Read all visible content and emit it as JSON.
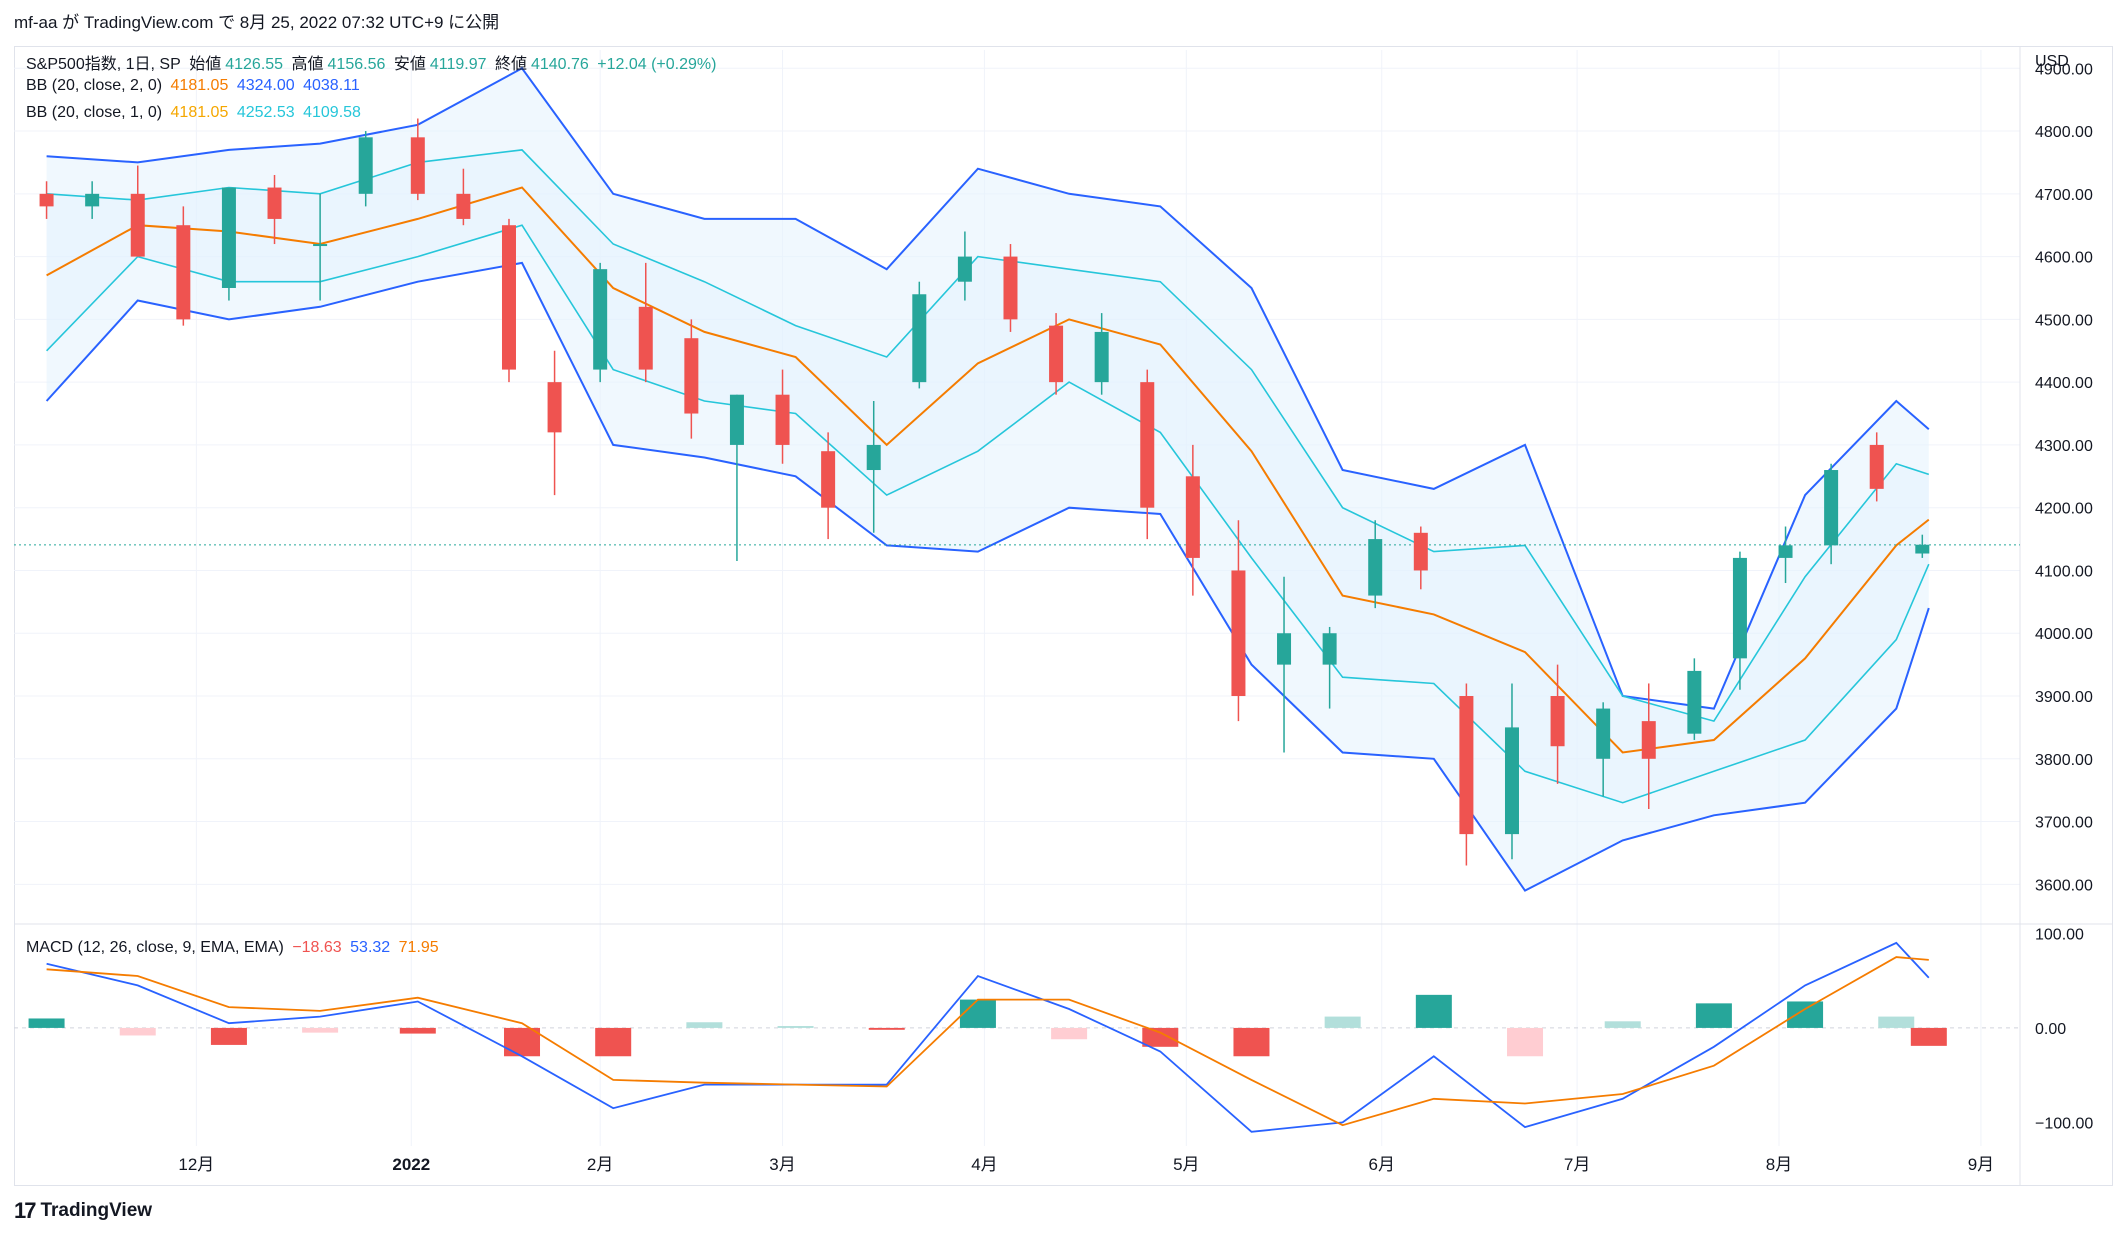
{
  "header": {
    "publish_line": "mf-aa が TradingView.com で 8月 25, 2022 07:32 UTC+9 に公開"
  },
  "legend": {
    "symbol": "S&P500指数, 1日, SP",
    "open_label": "始値",
    "open": "4126.55",
    "high_label": "高値",
    "high": "4156.56",
    "low_label": "安値",
    "low": "4119.97",
    "close_label": "終値",
    "close": "4140.76",
    "change": "+12.04 (+0.29%)",
    "bb2_label": "BB (20, close, 2, 0)",
    "bb2_basis": "4181.05",
    "bb2_upper": "4324.00",
    "bb2_lower": "4038.11",
    "bb1_label": "BB (20, close, 1, 0)",
    "bb1_basis": "4181.05",
    "bb1_upper": "4252.53",
    "bb1_lower": "4109.58",
    "macd_label": "MACD (12, 26, close, 9, EMA, EMA)",
    "macd_hist": "−18.63",
    "macd_line": "53.32",
    "macd_signal": "71.95"
  },
  "footer": {
    "brand": "TradingView",
    "logo_glyph": "17"
  },
  "colors": {
    "up": "#26a69a",
    "down": "#ef5350",
    "basis": "#f57c00",
    "bb2_band": "#2962ff",
    "bb1_band": "#26c6da",
    "fill": "#e3f2fd",
    "hist_up_light": "#b2dfdb",
    "hist_down_light": "#ffcdd2"
  },
  "chart_data": {
    "type": "candlestick",
    "y_unit": "USD",
    "price_axis": {
      "ylim": [
        3540,
        4910
      ],
      "ticks": [
        3600,
        3700,
        3800,
        3900,
        4000,
        4100,
        4200,
        4300,
        4400,
        4500,
        4600,
        4700,
        4800,
        4900
      ],
      "tick_labels": [
        "3600.00",
        "3700.00",
        "3800.00",
        "3900.00",
        "4000.00",
        "4100.00",
        "4200.00",
        "4300.00",
        "4400.00",
        "4500.00",
        "4600.00",
        "4700.00",
        "4800.00",
        "4900.00"
      ]
    },
    "macd_axis": {
      "ylim": [
        -125,
        110
      ],
      "ticks": [
        100,
        0,
        -100
      ],
      "tick_labels": [
        "100.00",
        "0.00",
        "−100.00"
      ]
    },
    "x_axis": {
      "dates": [
        "2021-12-01",
        "2022-01-03",
        "2022-02-01",
        "2022-03-01",
        "2022-04-01",
        "2022-05-02",
        "2022-06-01",
        "2022-07-01",
        "2022-08-01",
        "2022-09-01"
      ],
      "labels": [
        "12月",
        "2022",
        "2月",
        "3月",
        "4月",
        "5月",
        "6月",
        "7月",
        "8月",
        "9月"
      ]
    },
    "last_close": 4140.76,
    "series": [
      {
        "name": "BB (20, close, 2, 0)",
        "kind": "upper",
        "x": [
          "2021-11-08",
          "2021-11-22",
          "2021-12-06",
          "2021-12-20",
          "2022-01-04",
          "2022-01-20",
          "2022-02-03",
          "2022-02-17",
          "2022-03-03",
          "2022-03-17",
          "2022-03-31",
          "2022-04-14",
          "2022-04-28",
          "2022-05-12",
          "2022-05-26",
          "2022-06-09",
          "2022-06-23",
          "2022-07-08",
          "2022-07-22",
          "2022-08-05",
          "2022-08-19",
          "2022-08-24"
        ],
        "values": [
          4760,
          4750,
          4770,
          4780,
          4810,
          4900,
          4700,
          4660,
          4660,
          4580,
          4740,
          4700,
          4680,
          4550,
          4260,
          4230,
          4300,
          3900,
          3880,
          4220,
          4370,
          4325
        ]
      },
      {
        "name": "BB (20, close, 1, 0)",
        "kind": "upper",
        "x": [
          "2021-11-08",
          "2021-11-22",
          "2021-12-06",
          "2021-12-20",
          "2022-01-04",
          "2022-01-20",
          "2022-02-03",
          "2022-02-17",
          "2022-03-03",
          "2022-03-17",
          "2022-03-31",
          "2022-04-14",
          "2022-04-28",
          "2022-05-12",
          "2022-05-26",
          "2022-06-09",
          "2022-06-23",
          "2022-07-08",
          "2022-07-22",
          "2022-08-05",
          "2022-08-19",
          "2022-08-24"
        ],
        "values": [
          4700,
          4690,
          4710,
          4700,
          4750,
          4770,
          4620,
          4560,
          4490,
          4440,
          4600,
          4580,
          4560,
          4420,
          4200,
          4130,
          4140,
          3900,
          3860,
          4090,
          4270,
          4253
        ]
      },
      {
        "name": "BB (20, close, 2, 0)",
        "kind": "basis",
        "x": [
          "2021-11-08",
          "2021-11-22",
          "2021-12-06",
          "2021-12-20",
          "2022-01-04",
          "2022-01-20",
          "2022-02-03",
          "2022-02-17",
          "2022-03-03",
          "2022-03-17",
          "2022-03-31",
          "2022-04-14",
          "2022-04-28",
          "2022-05-12",
          "2022-05-26",
          "2022-06-09",
          "2022-06-23",
          "2022-07-08",
          "2022-07-22",
          "2022-08-05",
          "2022-08-19",
          "2022-08-24"
        ],
        "values": [
          4570,
          4650,
          4640,
          4620,
          4660,
          4710,
          4550,
          4480,
          4440,
          4300,
          4430,
          4500,
          4460,
          4290,
          4060,
          4030,
          3970,
          3810,
          3830,
          3960,
          4140,
          4181
        ]
      },
      {
        "name": "BB (20, close, 1, 0)",
        "kind": "lower",
        "x": [
          "2021-11-08",
          "2021-11-22",
          "2021-12-06",
          "2021-12-20",
          "2022-01-04",
          "2022-01-20",
          "2022-02-03",
          "2022-02-17",
          "2022-03-03",
          "2022-03-17",
          "2022-03-31",
          "2022-04-14",
          "2022-04-28",
          "2022-05-12",
          "2022-05-26",
          "2022-06-09",
          "2022-06-23",
          "2022-07-08",
          "2022-07-22",
          "2022-08-05",
          "2022-08-19",
          "2022-08-24"
        ],
        "values": [
          4450,
          4600,
          4560,
          4560,
          4600,
          4650,
          4420,
          4370,
          4350,
          4220,
          4290,
          4400,
          4320,
          4120,
          3930,
          3920,
          3780,
          3730,
          3780,
          3830,
          3990,
          4110
        ]
      },
      {
        "name": "BB (20, close, 2, 0)",
        "kind": "lower",
        "x": [
          "2021-11-08",
          "2021-11-22",
          "2021-12-06",
          "2021-12-20",
          "2022-01-04",
          "2022-01-20",
          "2022-02-03",
          "2022-02-17",
          "2022-03-03",
          "2022-03-17",
          "2022-03-31",
          "2022-04-14",
          "2022-04-28",
          "2022-05-12",
          "2022-05-26",
          "2022-06-09",
          "2022-06-23",
          "2022-07-08",
          "2022-07-22",
          "2022-08-05",
          "2022-08-19",
          "2022-08-24"
        ],
        "values": [
          4370,
          4530,
          4500,
          4520,
          4560,
          4590,
          4300,
          4280,
          4250,
          4140,
          4130,
          4200,
          4190,
          3950,
          3810,
          3800,
          3590,
          3670,
          3710,
          3730,
          3880,
          4040
        ]
      },
      {
        "name": "MACD",
        "kind": "macd_line",
        "x": [
          "2021-11-08",
          "2021-11-22",
          "2021-12-06",
          "2021-12-20",
          "2022-01-04",
          "2022-01-20",
          "2022-02-03",
          "2022-02-17",
          "2022-03-03",
          "2022-03-17",
          "2022-03-31",
          "2022-04-14",
          "2022-04-28",
          "2022-05-12",
          "2022-05-26",
          "2022-06-09",
          "2022-06-23",
          "2022-07-08",
          "2022-07-22",
          "2022-08-05",
          "2022-08-19",
          "2022-08-24"
        ],
        "values": [
          68,
          45,
          5,
          12,
          28,
          -30,
          -85,
          -60,
          -60,
          -60,
          55,
          20,
          -25,
          -110,
          -100,
          -30,
          -105,
          -75,
          -20,
          45,
          90,
          53
        ]
      },
      {
        "name": "Signal",
        "kind": "macd_signal",
        "x": [
          "2021-11-08",
          "2021-11-22",
          "2021-12-06",
          "2021-12-20",
          "2022-01-04",
          "2022-01-20",
          "2022-02-03",
          "2022-02-17",
          "2022-03-03",
          "2022-03-17",
          "2022-03-31",
          "2022-04-14",
          "2022-04-28",
          "2022-05-12",
          "2022-05-26",
          "2022-06-09",
          "2022-06-23",
          "2022-07-08",
          "2022-07-22",
          "2022-08-05",
          "2022-08-19",
          "2022-08-24"
        ],
        "values": [
          62,
          55,
          22,
          18,
          32,
          5,
          -55,
          -58,
          -60,
          -62,
          30,
          30,
          -5,
          -55,
          -103,
          -75,
          -80,
          -70,
          -40,
          20,
          75,
          72
        ]
      }
    ],
    "macd_histogram": {
      "x": [
        "2021-11-08",
        "2021-11-22",
        "2021-12-06",
        "2021-12-20",
        "2022-01-04",
        "2022-01-20",
        "2022-02-03",
        "2022-02-17",
        "2022-03-03",
        "2022-03-17",
        "2022-03-31",
        "2022-04-14",
        "2022-04-28",
        "2022-05-12",
        "2022-05-26",
        "2022-06-09",
        "2022-06-23",
        "2022-07-08",
        "2022-07-22",
        "2022-08-05",
        "2022-08-19",
        "2022-08-24"
      ],
      "values": [
        10,
        -8,
        -18,
        -5,
        -6,
        -30,
        -30,
        6,
        2,
        -2,
        30,
        -12,
        -20,
        -30,
        12,
        35,
        -30,
        7,
        26,
        28,
        12,
        -19
      ]
    },
    "candles": [
      {
        "d": "2021-11-08",
        "o": 4700,
        "h": 4720,
        "l": 4660,
        "c": 4680
      },
      {
        "d": "2021-11-15",
        "o": 4680,
        "h": 4720,
        "l": 4660,
        "c": 4700
      },
      {
        "d": "2021-11-22",
        "o": 4700,
        "h": 4745,
        "l": 4600,
        "c": 4600
      },
      {
        "d": "2021-11-29",
        "o": 4650,
        "h": 4680,
        "l": 4490,
        "c": 4500
      },
      {
        "d": "2021-12-06",
        "o": 4550,
        "h": 4710,
        "l": 4530,
        "c": 4710
      },
      {
        "d": "2021-12-13",
        "o": 4710,
        "h": 4730,
        "l": 4620,
        "c": 4660
      },
      {
        "d": "2021-12-20",
        "o": 4620,
        "h": 4700,
        "l": 4530,
        "c": 4620
      },
      {
        "d": "2021-12-27",
        "o": 4700,
        "h": 4800,
        "l": 4680,
        "c": 4790
      },
      {
        "d": "2022-01-04",
        "o": 4790,
        "h": 4820,
        "l": 4690,
        "c": 4700
      },
      {
        "d": "2022-01-11",
        "o": 4700,
        "h": 4740,
        "l": 4650,
        "c": 4660
      },
      {
        "d": "2022-01-18",
        "o": 4650,
        "h": 4660,
        "l": 4400,
        "c": 4420
      },
      {
        "d": "2022-01-25",
        "o": 4400,
        "h": 4450,
        "l": 4220,
        "c": 4320
      },
      {
        "d": "2022-02-01",
        "o": 4420,
        "h": 4590,
        "l": 4400,
        "c": 4580
      },
      {
        "d": "2022-02-08",
        "o": 4520,
        "h": 4590,
        "l": 4400,
        "c": 4420
      },
      {
        "d": "2022-02-15",
        "o": 4470,
        "h": 4500,
        "l": 4310,
        "c": 4350
      },
      {
        "d": "2022-02-22",
        "o": 4300,
        "h": 4380,
        "l": 4115,
        "c": 4380
      },
      {
        "d": "2022-03-01",
        "o": 4380,
        "h": 4420,
        "l": 4270,
        "c": 4300
      },
      {
        "d": "2022-03-08",
        "o": 4290,
        "h": 4320,
        "l": 4150,
        "c": 4200
      },
      {
        "d": "2022-03-15",
        "o": 4260,
        "h": 4370,
        "l": 4160,
        "c": 4300
      },
      {
        "d": "2022-03-22",
        "o": 4400,
        "h": 4560,
        "l": 4390,
        "c": 4540
      },
      {
        "d": "2022-03-29",
        "o": 4560,
        "h": 4640,
        "l": 4530,
        "c": 4600
      },
      {
        "d": "2022-04-05",
        "o": 4600,
        "h": 4620,
        "l": 4480,
        "c": 4500
      },
      {
        "d": "2022-04-12",
        "o": 4490,
        "h": 4510,
        "l": 4380,
        "c": 4400
      },
      {
        "d": "2022-04-19",
        "o": 4400,
        "h": 4510,
        "l": 4380,
        "c": 4480
      },
      {
        "d": "2022-04-26",
        "o": 4400,
        "h": 4420,
        "l": 4150,
        "c": 4200
      },
      {
        "d": "2022-05-03",
        "o": 4250,
        "h": 4300,
        "l": 4060,
        "c": 4120
      },
      {
        "d": "2022-05-10",
        "o": 4100,
        "h": 4180,
        "l": 3860,
        "c": 3900
      },
      {
        "d": "2022-05-17",
        "o": 3950,
        "h": 4090,
        "l": 3810,
        "c": 4000
      },
      {
        "d": "2022-05-24",
        "o": 3950,
        "h": 4010,
        "l": 3880,
        "c": 4000
      },
      {
        "d": "2022-05-31",
        "o": 4060,
        "h": 4180,
        "l": 4040,
        "c": 4150
      },
      {
        "d": "2022-06-07",
        "o": 4160,
        "h": 4170,
        "l": 4070,
        "c": 4100
      },
      {
        "d": "2022-06-14",
        "o": 3900,
        "h": 3920,
        "l": 3630,
        "c": 3680
      },
      {
        "d": "2022-06-21",
        "o": 3680,
        "h": 3920,
        "l": 3640,
        "c": 3850
      },
      {
        "d": "2022-06-28",
        "o": 3900,
        "h": 3950,
        "l": 3760,
        "c": 3820
      },
      {
        "d": "2022-07-05",
        "o": 3800,
        "h": 3890,
        "l": 3740,
        "c": 3880
      },
      {
        "d": "2022-07-12",
        "o": 3860,
        "h": 3920,
        "l": 3720,
        "c": 3800
      },
      {
        "d": "2022-07-19",
        "o": 3840,
        "h": 3960,
        "l": 3830,
        "c": 3940
      },
      {
        "d": "2022-07-26",
        "o": 3960,
        "h": 4130,
        "l": 3910,
        "c": 4120
      },
      {
        "d": "2022-08-02",
        "o": 4120,
        "h": 4170,
        "l": 4080,
        "c": 4140
      },
      {
        "d": "2022-08-09",
        "o": 4140,
        "h": 4270,
        "l": 4110,
        "c": 4260
      },
      {
        "d": "2022-08-16",
        "o": 4300,
        "h": 4320,
        "l": 4210,
        "c": 4230
      },
      {
        "d": "2022-08-23",
        "o": 4127,
        "h": 4157,
        "l": 4120,
        "c": 4141
      }
    ]
  }
}
